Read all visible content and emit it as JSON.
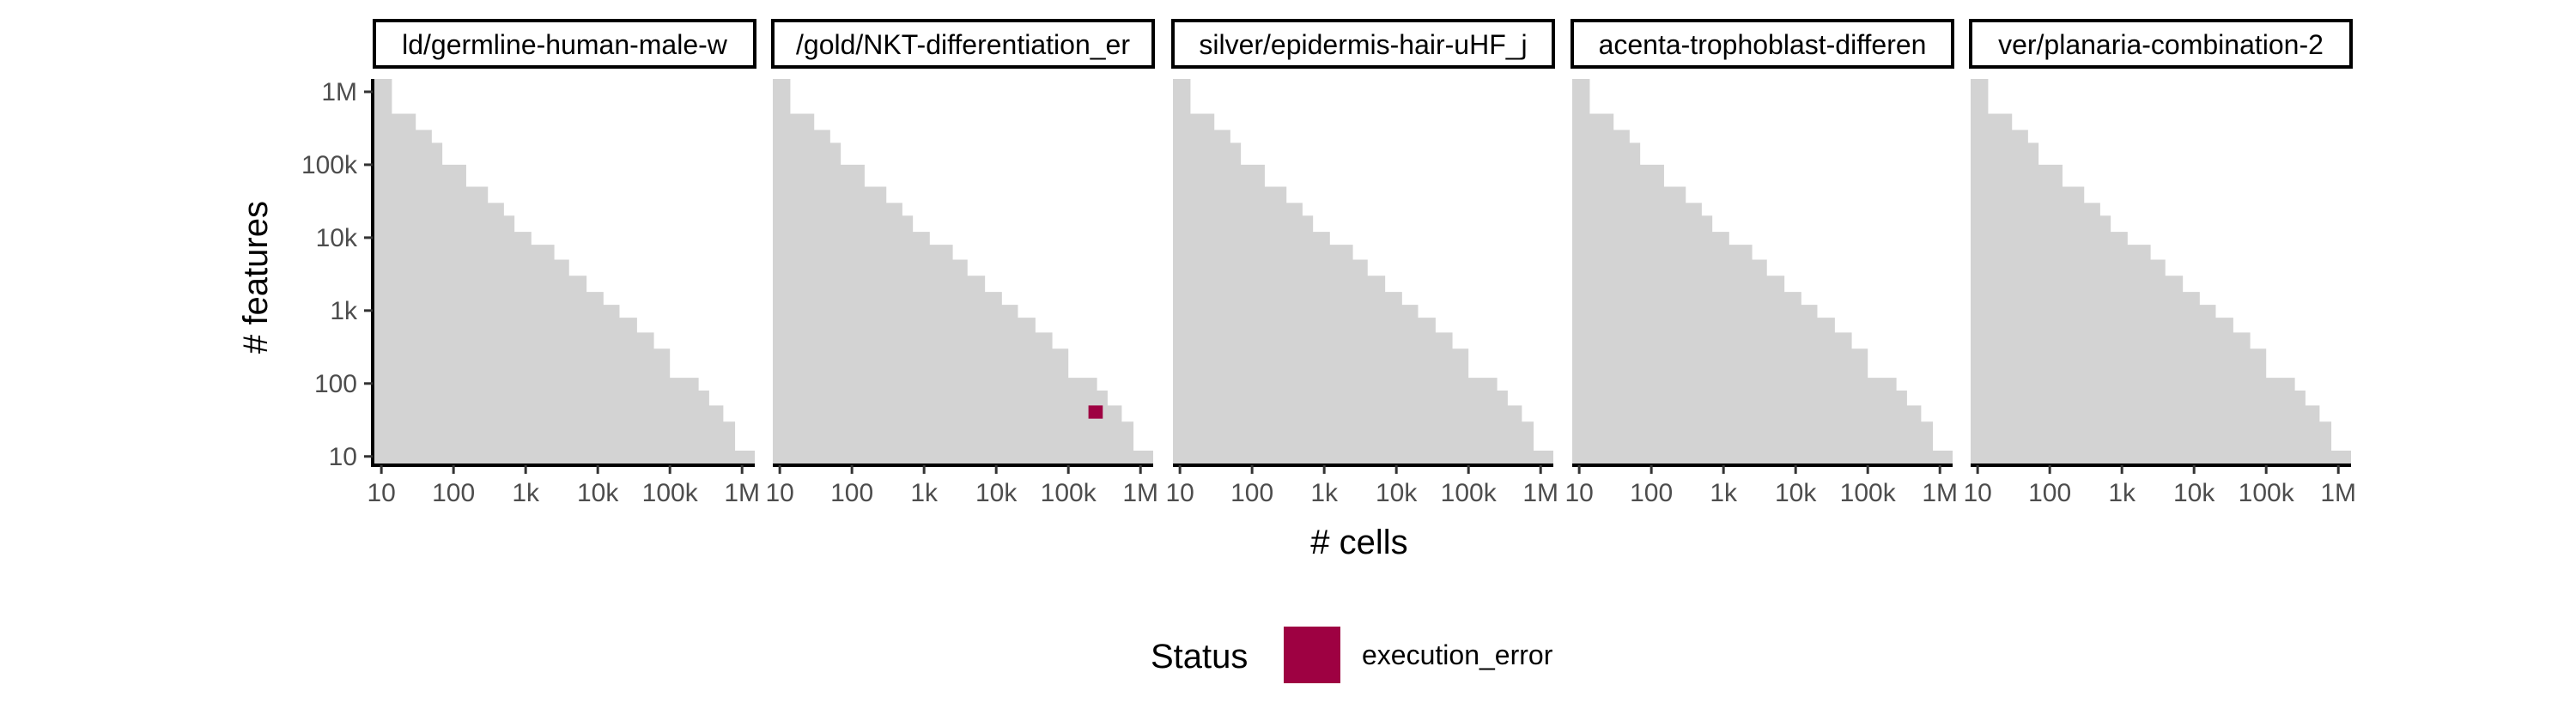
{
  "chart_data": {
    "type": "heatmap",
    "xlabel": "# cells",
    "ylabel": "# features",
    "x_scale": "log10",
    "y_scale": "log10",
    "xlim": [
      8,
      1500000
    ],
    "ylim": [
      8,
      1500000
    ],
    "x_ticks": [
      10,
      100,
      1000,
      10000,
      100000,
      1000000
    ],
    "x_tick_labels": [
      "10",
      "100",
      "1k",
      "10k",
      "100k",
      "1M"
    ],
    "y_ticks": [
      10,
      100,
      1000,
      10000,
      100000,
      1000000
    ],
    "y_tick_labels": [
      "10",
      "100",
      "1k",
      "10k",
      "100k",
      "1M"
    ],
    "grid": false,
    "background_region": {
      "color": "#d3d3d3",
      "boundary": [
        {
          "x": 8,
          "y": 1500000
        },
        {
          "x": 14,
          "y": 500000
        },
        {
          "x": 30,
          "y": 300000
        },
        {
          "x": 50,
          "y": 200000
        },
        {
          "x": 70,
          "y": 100000
        },
        {
          "x": 150,
          "y": 50000
        },
        {
          "x": 300,
          "y": 30000
        },
        {
          "x": 500,
          "y": 20000
        },
        {
          "x": 700,
          "y": 12000
        },
        {
          "x": 1200,
          "y": 8000
        },
        {
          "x": 2500,
          "y": 5000
        },
        {
          "x": 4000,
          "y": 3000
        },
        {
          "x": 7000,
          "y": 1800
        },
        {
          "x": 12000,
          "y": 1200
        },
        {
          "x": 20000,
          "y": 800
        },
        {
          "x": 35000,
          "y": 500
        },
        {
          "x": 60000,
          "y": 300
        },
        {
          "x": 100000,
          "y": 120
        },
        {
          "x": 250000,
          "y": 80
        },
        {
          "x": 350000,
          "y": 50
        },
        {
          "x": 550000,
          "y": 30
        },
        {
          "x": 800000,
          "y": 12
        }
      ]
    },
    "panels": [
      {
        "label": "ld/germline-human-male-w",
        "points": []
      },
      {
        "label": "/gold/NKT-differentiation_er",
        "points": [
          {
            "x_range": [
              190000,
              300000
            ],
            "y_range": [
              33,
              50
            ],
            "status": "execution_error"
          }
        ]
      },
      {
        "label": "silver/epidermis-hair-uHF_j",
        "points": []
      },
      {
        "label": "acenta-trophoblast-differen",
        "points": []
      },
      {
        "label": "ver/planaria-combination-2",
        "points": []
      }
    ],
    "legend": {
      "title": "Status",
      "placement": "bottom",
      "entries": [
        {
          "label": "execution_error",
          "color": "#9e0142"
        }
      ]
    }
  }
}
